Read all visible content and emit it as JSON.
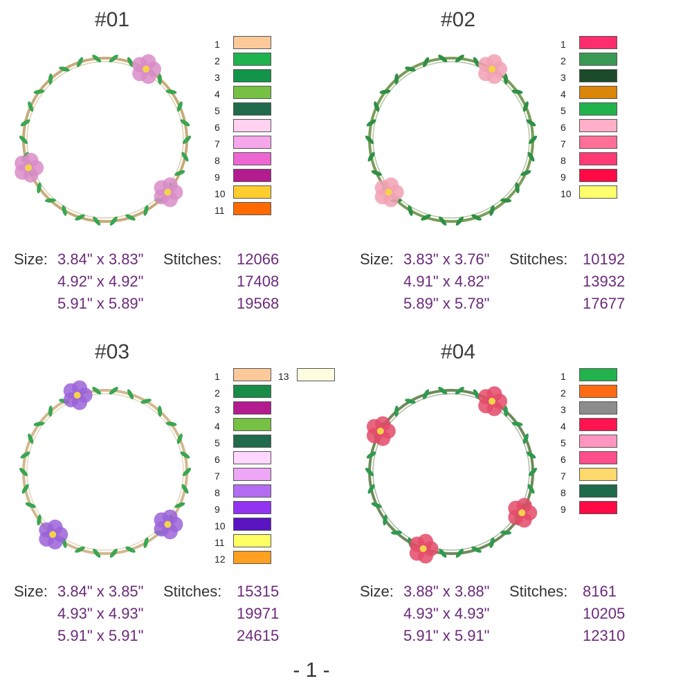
{
  "designs": [
    {
      "title": "#01",
      "size_label": "Size:",
      "stitches_label": "Stitches:",
      "sizes": [
        "3.84\" x 3.83\"",
        "4.92\" x 4.92\"",
        "5.91\" x 5.89\""
      ],
      "stitches": [
        "12066",
        "17408",
        "19568"
      ],
      "wreath_color": "#c7ab7a",
      "leaf_color": "#3aa652",
      "flower_color": "#d98cc8",
      "palette": [
        {
          "num": "1",
          "color": "#fcc99a"
        },
        {
          "num": "2",
          "color": "#1fb34f"
        },
        {
          "num": "3",
          "color": "#12944a"
        },
        {
          "num": "4",
          "color": "#76c043"
        },
        {
          "num": "5",
          "color": "#1f6b4c"
        },
        {
          "num": "6",
          "color": "#ffd2f2"
        },
        {
          "num": "7",
          "color": "#f6a6eb"
        },
        {
          "num": "8",
          "color": "#ee66d3"
        },
        {
          "num": "9",
          "color": "#b31c8f"
        },
        {
          "num": "10",
          "color": "#ffce2e"
        },
        {
          "num": "11",
          "color": "#ff6a00"
        }
      ]
    },
    {
      "title": "#02",
      "size_label": "Size:",
      "stitches_label": "Stitches:",
      "sizes": [
        "3.83\" x 3.76\"",
        "4.91\" x 4.82\"",
        "5.89\" x 5.78\""
      ],
      "stitches": [
        "10192",
        "13932",
        "17677"
      ],
      "wreath_color": "#7a9d5a",
      "leaf_color": "#2f8f45",
      "flower_color": "#f2a1b4",
      "palette": [
        {
          "num": "1",
          "color": "#ff2d6e"
        },
        {
          "num": "2",
          "color": "#3a9a55"
        },
        {
          "num": "3",
          "color": "#1b4a2a"
        },
        {
          "num": "4",
          "color": "#d9860a"
        },
        {
          "num": "5",
          "color": "#22b24c"
        },
        {
          "num": "6",
          "color": "#ffafc7"
        },
        {
          "num": "7",
          "color": "#ff6f98"
        },
        {
          "num": "8",
          "color": "#ff3a74"
        },
        {
          "num": "9",
          "color": "#ff0a45"
        },
        {
          "num": "10",
          "color": "#ffff6e"
        }
      ]
    },
    {
      "title": "#03",
      "size_label": "Size:",
      "stitches_label": "Stitches:",
      "sizes": [
        "3.84\" x 3.85\"",
        "4.93\" x 4.93\"",
        "5.91\" x 5.91\""
      ],
      "stitches": [
        "15315",
        "19971",
        "24615"
      ],
      "wreath_color": "#d2b98f",
      "leaf_color": "#3aa652",
      "flower_color": "#9b63d9",
      "palette": [
        {
          "num": "1",
          "color": "#fcc99a"
        },
        {
          "num": "2",
          "color": "#198c48"
        },
        {
          "num": "3",
          "color": "#b31c8f"
        },
        {
          "num": "4",
          "color": "#76c043"
        },
        {
          "num": "5",
          "color": "#1f6b4c"
        },
        {
          "num": "6",
          "color": "#ffd6ff"
        },
        {
          "num": "7",
          "color": "#eea6f6"
        },
        {
          "num": "8",
          "color": "#b26cf2"
        },
        {
          "num": "9",
          "color": "#9233f2"
        },
        {
          "num": "10",
          "color": "#5a14c2"
        },
        {
          "num": "11",
          "color": "#ffff63"
        },
        {
          "num": "12",
          "color": "#ffa020"
        },
        {
          "num": "13",
          "color": "#fffde0"
        }
      ]
    },
    {
      "title": "#04",
      "size_label": "Size:",
      "stitches_label": "Stitches:",
      "sizes": [
        "3.88\" x 3.88\"",
        "4.93\" x 4.93\"",
        "5.91\" x 5.91\""
      ],
      "stitches": [
        "8161",
        "10205",
        "12310"
      ],
      "wreath_color": "#6e8a5a",
      "leaf_color": "#2f9a4e",
      "flower_color": "#e44a68",
      "palette": [
        {
          "num": "1",
          "color": "#22b24c"
        },
        {
          "num": "2",
          "color": "#ff6b12"
        },
        {
          "num": "3",
          "color": "#8c8c8c"
        },
        {
          "num": "4",
          "color": "#ff1450"
        },
        {
          "num": "5",
          "color": "#ff96c0"
        },
        {
          "num": "6",
          "color": "#ff4f8c"
        },
        {
          "num": "7",
          "color": "#ffd96b"
        },
        {
          "num": "8",
          "color": "#1d6b4b"
        },
        {
          "num": "9",
          "color": "#ff0a45"
        }
      ]
    }
  ],
  "page_number": "- 1 -"
}
